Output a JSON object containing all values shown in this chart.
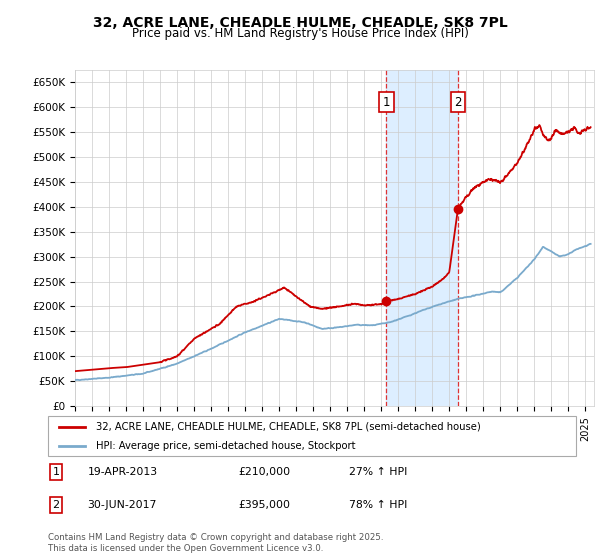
{
  "title": "32, ACRE LANE, CHEADLE HULME, CHEADLE, SK8 7PL",
  "subtitle": "Price paid vs. HM Land Registry's House Price Index (HPI)",
  "ylabel_ticks": [
    "£0",
    "£50K",
    "£100K",
    "£150K",
    "£200K",
    "£250K",
    "£300K",
    "£350K",
    "£400K",
    "£450K",
    "£500K",
    "£550K",
    "£600K",
    "£650K"
  ],
  "ytick_values": [
    0,
    50000,
    100000,
    150000,
    200000,
    250000,
    300000,
    350000,
    400000,
    450000,
    500000,
    550000,
    600000,
    650000
  ],
  "xlim_start": 1995.0,
  "xlim_end": 2025.5,
  "ylim_min": 0,
  "ylim_max": 675000,
  "sale1_date": 2013.3,
  "sale1_price": 210000,
  "sale2_date": 2017.5,
  "sale2_price": 395000,
  "red_line_color": "#cc0000",
  "blue_line_color": "#7aaacc",
  "shade_color": "#ddeeff",
  "legend_line1": "32, ACRE LANE, CHEADLE HULME, CHEADLE, SK8 7PL (semi-detached house)",
  "legend_line2": "HPI: Average price, semi-detached house, Stockport",
  "footer": "Contains HM Land Registry data © Crown copyright and database right 2025.\nThis data is licensed under the Open Government Licence v3.0.",
  "background_color": "#ffffff",
  "grid_color": "#cccccc"
}
